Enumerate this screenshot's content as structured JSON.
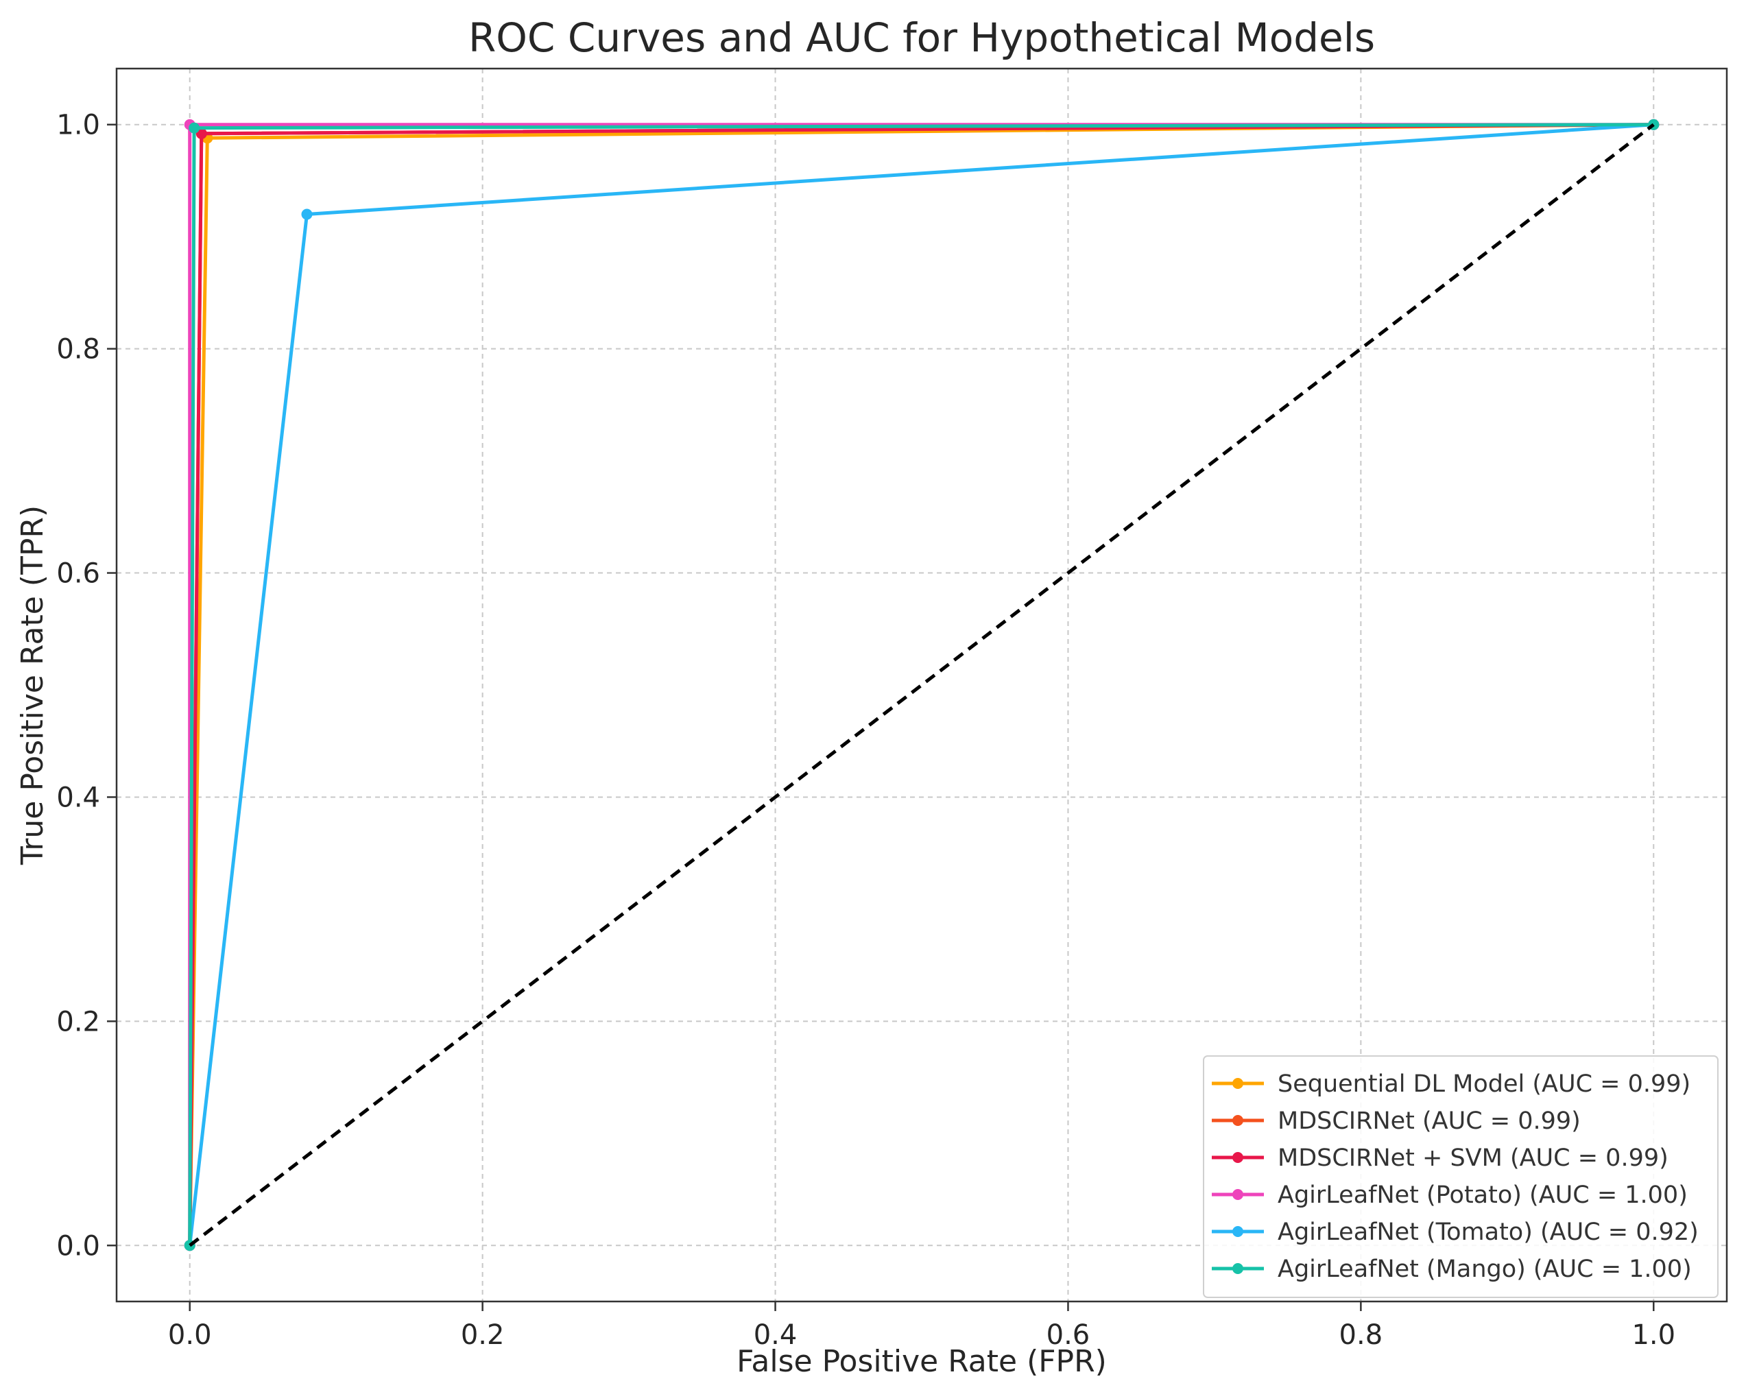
{
  "chart_data": {
    "type": "line",
    "title": "ROC Curves and AUC for Hypothetical Models",
    "xlabel": "False Positive Rate (FPR)",
    "ylabel": "True Positive Rate (TPR)",
    "xlim": [
      -0.05,
      1.05
    ],
    "ylim": [
      -0.05,
      1.05
    ],
    "xticks": [
      0.0,
      0.2,
      0.4,
      0.6,
      0.8,
      1.0
    ],
    "yticks": [
      0.0,
      0.2,
      0.4,
      0.6,
      0.8,
      1.0
    ],
    "xtick_labels": [
      "0.0",
      "0.2",
      "0.4",
      "0.6",
      "0.8",
      "1.0"
    ],
    "ytick_labels": [
      "0.0",
      "0.2",
      "0.4",
      "0.6",
      "0.8",
      "1.0"
    ],
    "grid": true,
    "legend_position": "lower-right",
    "series": [
      {
        "name": "Sequential DL Model (AUC = 0.99)",
        "color": "#FFA500",
        "x": [
          0.0,
          0.012,
          1.0
        ],
        "y": [
          0.0,
          0.988,
          1.0
        ]
      },
      {
        "name": "MDSCIRNet (AUC = 0.99)",
        "color": "#F4511E",
        "x": [
          0.0,
          0.008,
          1.0
        ],
        "y": [
          0.0,
          0.992,
          1.0
        ]
      },
      {
        "name": "MDSCIRNet + SVM (AUC = 0.99)",
        "color": "#E8174A",
        "x": [
          0.0,
          0.008,
          1.0
        ],
        "y": [
          0.0,
          0.992,
          1.0
        ]
      },
      {
        "name": "AgirLeafNet (Potato) (AUC = 1.00)",
        "color": "#EE44BB",
        "x": [
          0.0,
          0.0,
          1.0
        ],
        "y": [
          0.0,
          1.0,
          1.0
        ]
      },
      {
        "name": "AgirLeafNet (Tomato) (AUC = 0.92)",
        "color": "#29B6F6",
        "x": [
          0.0,
          0.08,
          1.0
        ],
        "y": [
          0.0,
          0.92,
          1.0
        ]
      },
      {
        "name": "AgirLeafNet (Mango) (AUC = 1.00)",
        "color": "#16C2A8",
        "x": [
          0.0,
          0.003,
          1.0
        ],
        "y": [
          0.0,
          0.997,
          1.0
        ]
      }
    ],
    "reference_line": {
      "name": "random-chance-diagonal",
      "color": "#000000",
      "x": [
        0.0,
        1.0
      ],
      "y": [
        0.0,
        1.0
      ]
    }
  }
}
